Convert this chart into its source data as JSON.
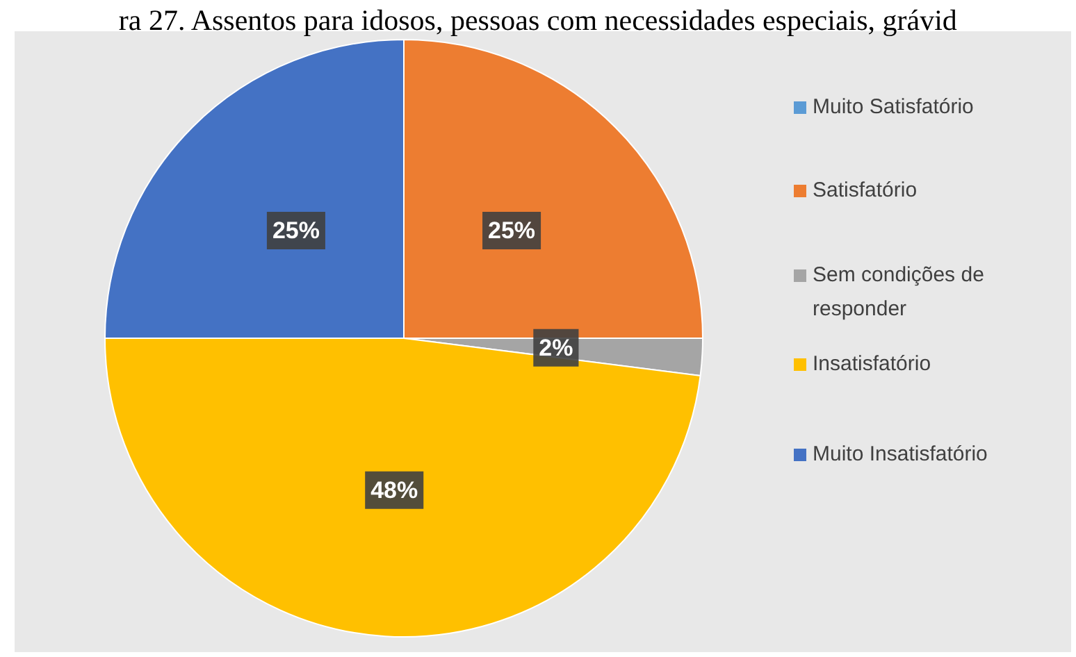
{
  "chart_data": {
    "type": "pie",
    "title": "ra 27. Assentos para idosos, pessoas com necessidades especiais, grávid",
    "categories": [
      "Muito Satisfatório",
      "Satisfatório",
      "Sem condições de responder",
      "Insatisfatório",
      "Muito Insatisfatório"
    ],
    "values": [
      0,
      25,
      2,
      48,
      25
    ],
    "colors": [
      "#5b9bd5",
      "#ed7d31",
      "#a5a5a5",
      "#ffc000",
      "#4472c4"
    ],
    "value_labels": [
      null,
      "25%",
      "2%",
      "48%",
      "25%"
    ],
    "legend": "right"
  }
}
